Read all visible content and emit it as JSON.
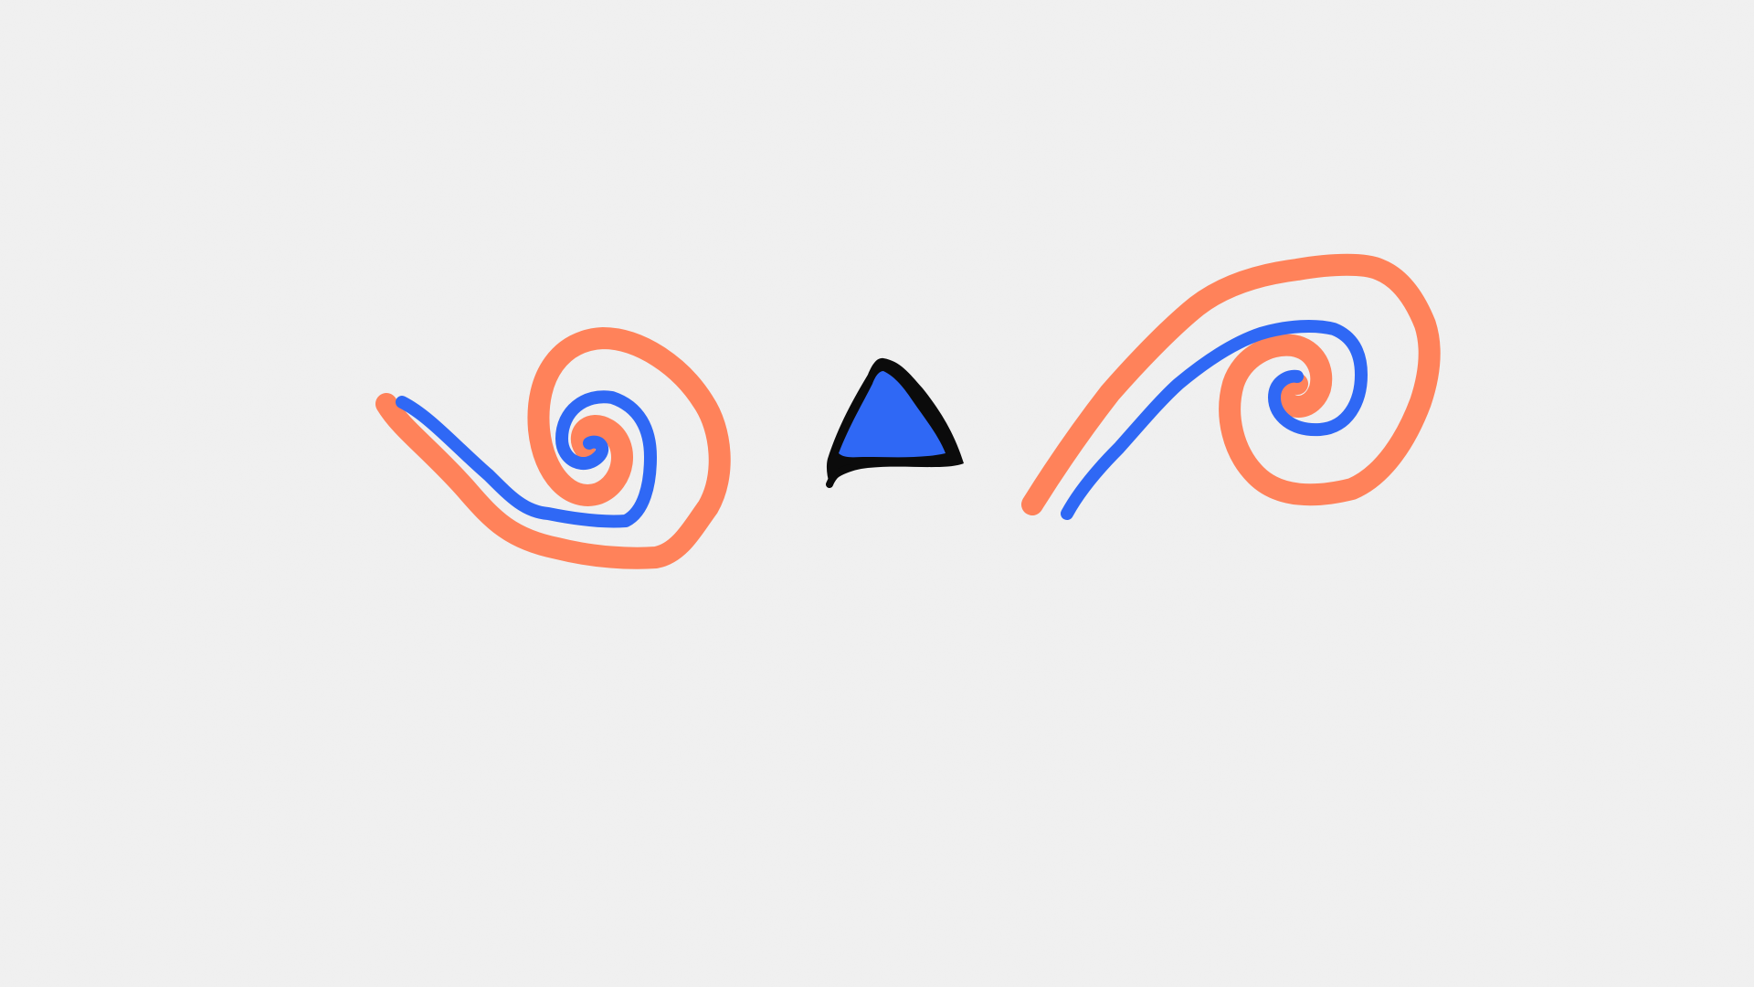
{
  "canvas": {
    "background": "#f1f1f1",
    "paper_texture": "speckled-paper"
  },
  "colors": {
    "orange": "#ff825a",
    "blue": "#2f68f5",
    "black": "#0b0b0b"
  },
  "drawing": {
    "shapes": [
      {
        "name": "left-orange-spiral",
        "kind": "spiral-stroke",
        "color": "orange"
      },
      {
        "name": "left-blue-spiral",
        "kind": "spiral-stroke",
        "color": "blue"
      },
      {
        "name": "center-triangle",
        "kind": "filled-triangle",
        "fill": "blue",
        "outline": "black"
      },
      {
        "name": "right-orange-spiral",
        "kind": "spiral-stroke",
        "color": "orange"
      },
      {
        "name": "right-blue-spiral",
        "kind": "spiral-stroke",
        "color": "blue"
      }
    ]
  }
}
